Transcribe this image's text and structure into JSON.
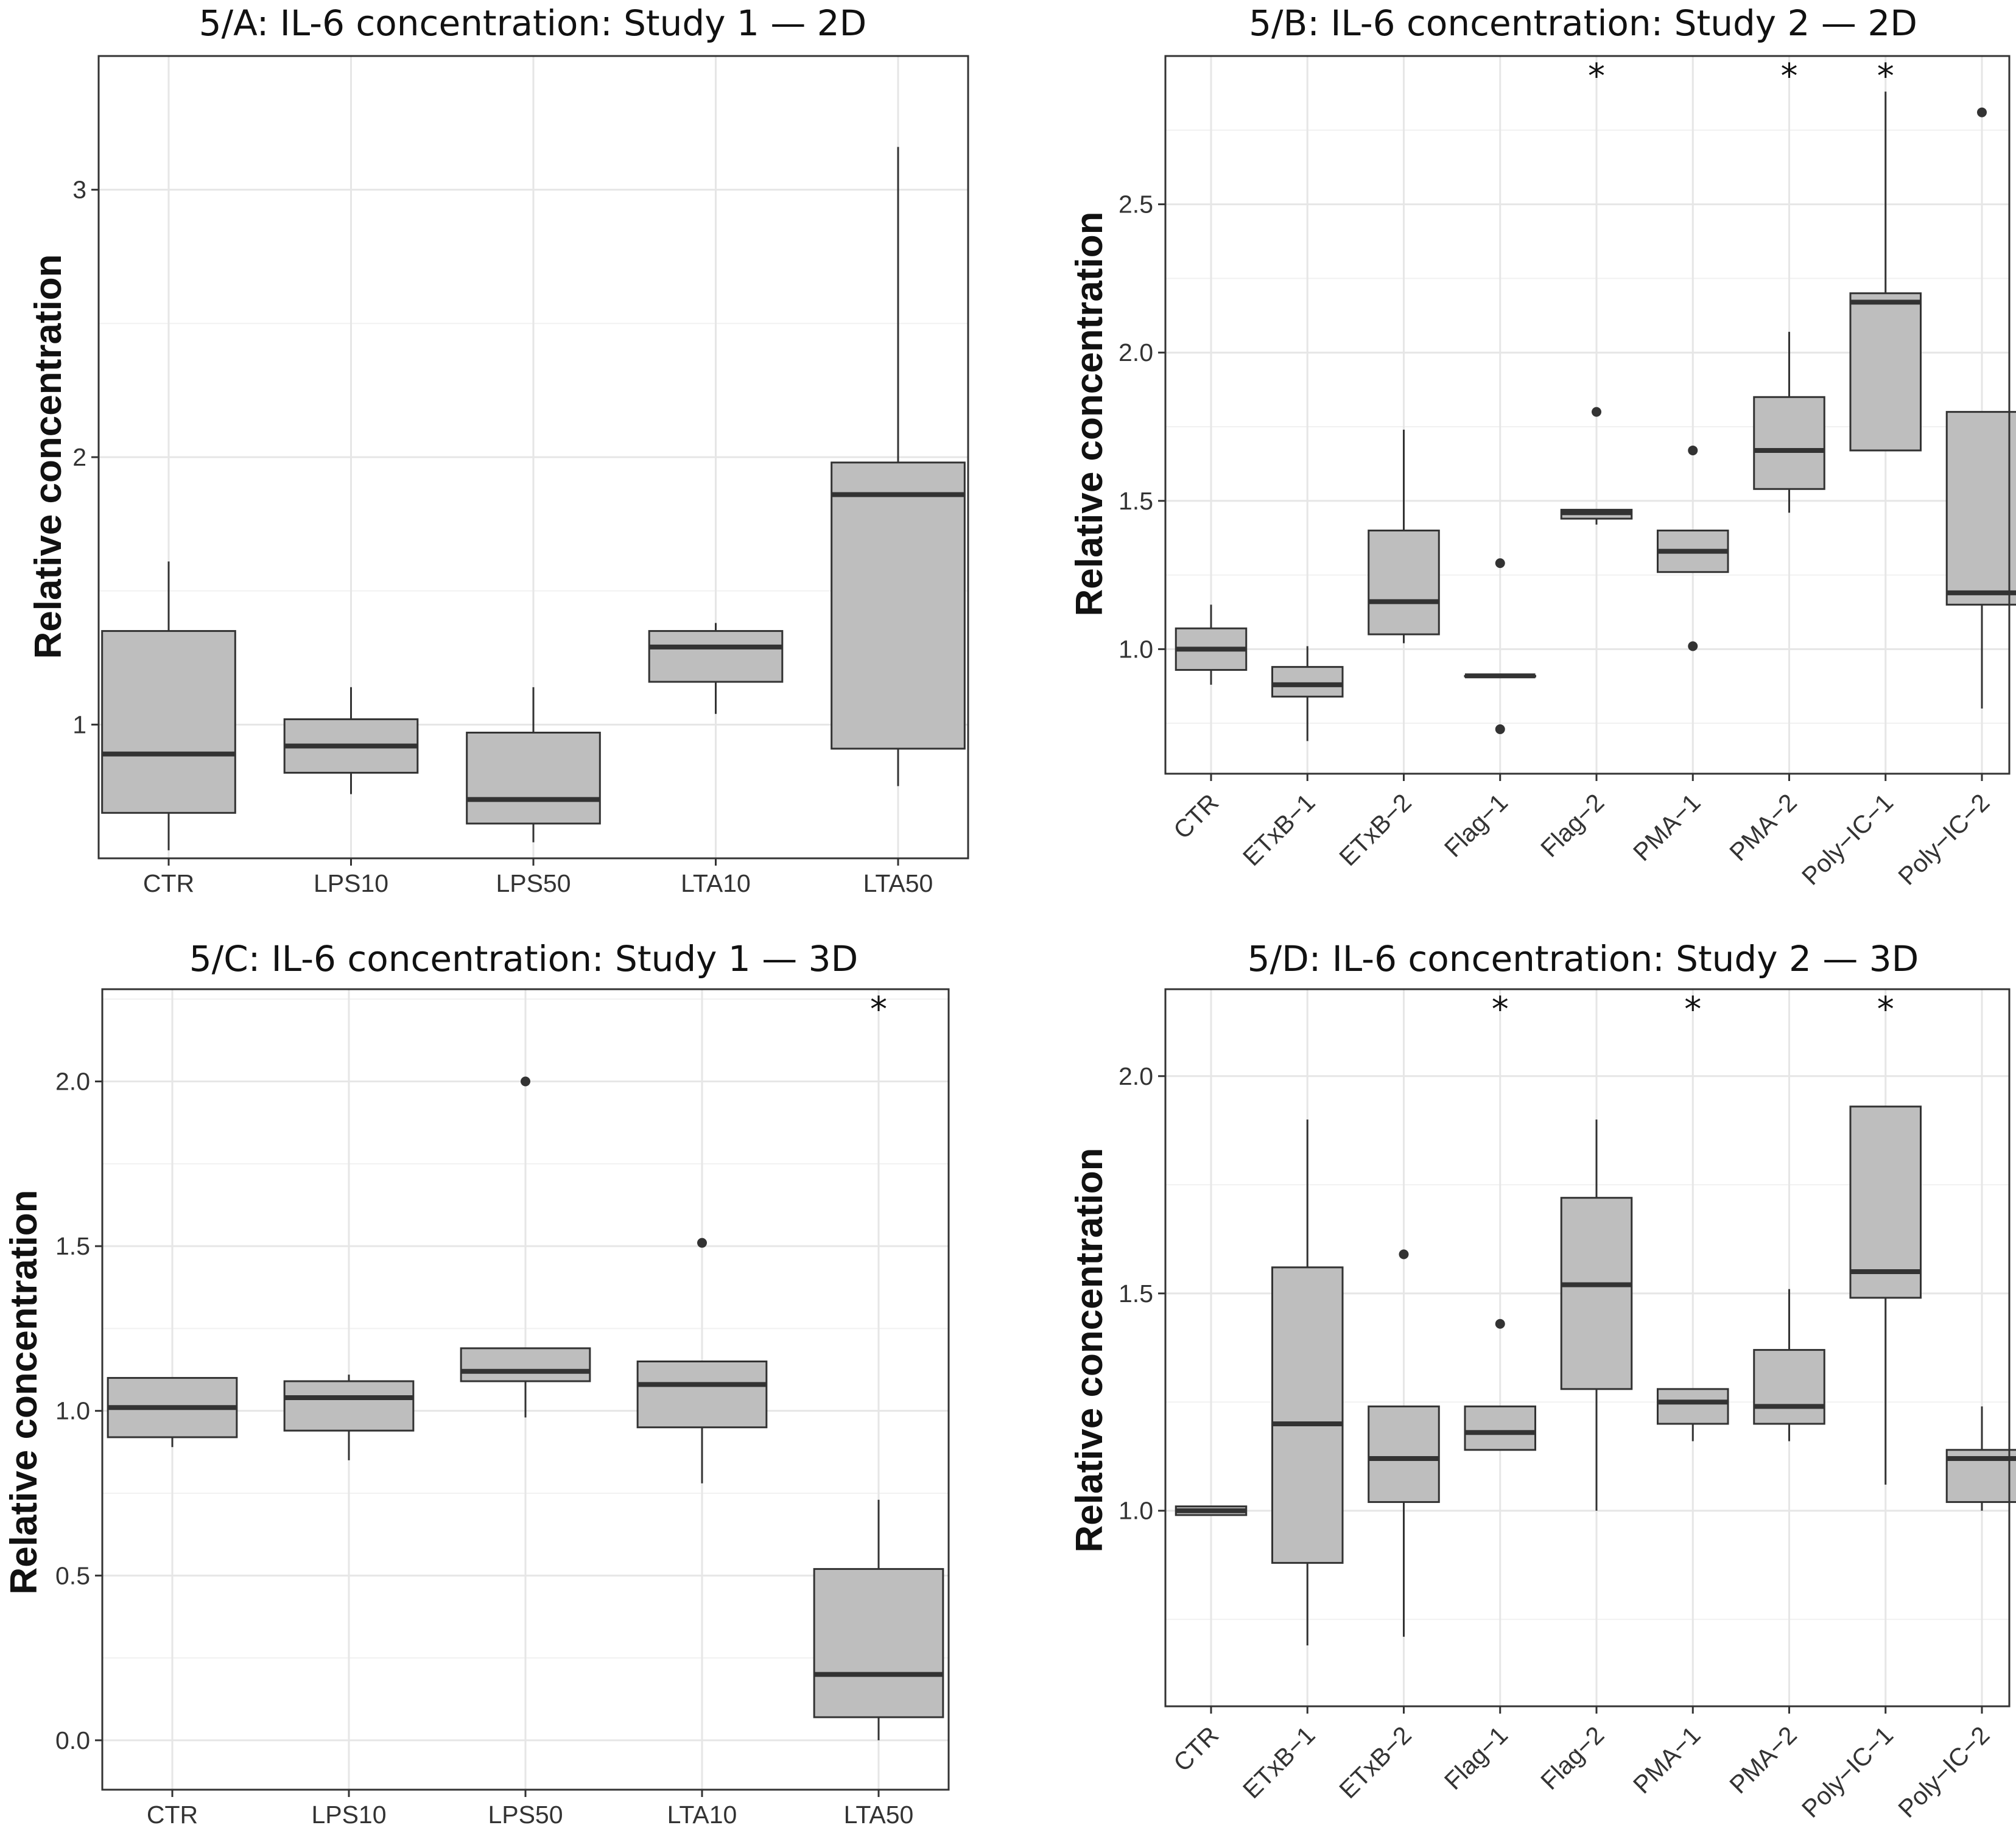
{
  "chart_data": [
    {
      "id": "A",
      "type": "boxplot",
      "title": "5/A: IL-6 concentration: Study 1 — 2D",
      "ylabel": "Relative concentration",
      "xlabel": "",
      "ylim": [
        0.5,
        3.5
      ],
      "yticks": [
        1,
        2,
        3
      ],
      "categories": [
        "CTR",
        "LPS10",
        "LPS50",
        "LTA10",
        "LTA50"
      ],
      "boxes": [
        {
          "min": 0.53,
          "q1": 0.67,
          "median": 0.89,
          "q3": 1.35,
          "max": 1.61,
          "outliers": [],
          "sig": ""
        },
        {
          "min": 0.74,
          "q1": 0.82,
          "median": 0.92,
          "q3": 1.02,
          "max": 1.14,
          "outliers": [],
          "sig": ""
        },
        {
          "min": 0.56,
          "q1": 0.63,
          "median": 0.72,
          "q3": 0.97,
          "max": 1.14,
          "outliers": [],
          "sig": ""
        },
        {
          "min": 1.04,
          "q1": 1.16,
          "median": 1.29,
          "q3": 1.35,
          "max": 1.38,
          "outliers": [],
          "sig": ""
        },
        {
          "min": 0.77,
          "q1": 0.91,
          "median": 1.86,
          "q3": 1.98,
          "max": 3.16,
          "outliers": [],
          "sig": ""
        }
      ]
    },
    {
      "id": "B",
      "type": "boxplot",
      "title": "5/B: IL-6 concentration: Study 2 — 2D",
      "ylabel": "Relative concentration",
      "xlabel": "",
      "ylim": [
        0.58,
        3.0
      ],
      "yticks": [
        1.0,
        1.5,
        2.0,
        2.5
      ],
      "categories": [
        "CTR",
        "ETxB−1",
        "ETxB−2",
        "Flag−1",
        "Flag−2",
        "PMA−1",
        "PMA−2",
        "Poly−IC−1",
        "Poly−IC−2"
      ],
      "boxes": [
        {
          "min": 0.88,
          "q1": 0.93,
          "median": 1.0,
          "q3": 1.07,
          "max": 1.15,
          "outliers": [],
          "sig": ""
        },
        {
          "min": 0.69,
          "q1": 0.84,
          "median": 0.88,
          "q3": 0.94,
          "max": 1.01,
          "outliers": [],
          "sig": ""
        },
        {
          "min": 1.02,
          "q1": 1.05,
          "median": 1.16,
          "q3": 1.4,
          "max": 1.74,
          "outliers": [],
          "sig": ""
        },
        {
          "min": 0.91,
          "q1": 0.91,
          "median": 0.91,
          "q3": 0.91,
          "max": 0.91,
          "outliers": [
            1.29,
            0.73
          ],
          "sig": ""
        },
        {
          "min": 1.42,
          "q1": 1.44,
          "median": 1.46,
          "q3": 1.47,
          "max": 1.47,
          "outliers": [
            1.8
          ],
          "sig": "*"
        },
        {
          "min": 1.26,
          "q1": 1.26,
          "median": 1.33,
          "q3": 1.4,
          "max": 1.4,
          "outliers": [
            1.67,
            1.01
          ],
          "sig": ""
        },
        {
          "min": 1.46,
          "q1": 1.54,
          "median": 1.67,
          "q3": 1.85,
          "max": 2.07,
          "outliers": [],
          "sig": "*"
        },
        {
          "min": 1.67,
          "q1": 1.67,
          "median": 2.17,
          "q3": 2.2,
          "max": 2.88,
          "outliers": [],
          "sig": "*"
        },
        {
          "min": 0.8,
          "q1": 1.15,
          "median": 1.19,
          "q3": 1.8,
          "max": 1.8,
          "outliers": [
            2.81
          ],
          "sig": ""
        }
      ]
    },
    {
      "id": "C",
      "type": "boxplot",
      "title": "5/C: IL-6 concentration: Study 1 — 3D",
      "ylabel": "Relative concentration",
      "xlabel": "",
      "ylim": [
        -0.15,
        2.28
      ],
      "yticks": [
        0.0,
        0.5,
        1.0,
        1.5,
        2.0
      ],
      "categories": [
        "CTR",
        "LPS10",
        "LPS50",
        "LTA10",
        "LTA50"
      ],
      "boxes": [
        {
          "min": 0.89,
          "q1": 0.92,
          "median": 1.01,
          "q3": 1.1,
          "max": 1.1,
          "outliers": [],
          "sig": ""
        },
        {
          "min": 0.85,
          "q1": 0.94,
          "median": 1.04,
          "q3": 1.09,
          "max": 1.11,
          "outliers": [],
          "sig": ""
        },
        {
          "min": 0.98,
          "q1": 1.09,
          "median": 1.12,
          "q3": 1.19,
          "max": 1.19,
          "outliers": [
            2.0
          ],
          "sig": ""
        },
        {
          "min": 0.78,
          "q1": 0.95,
          "median": 1.08,
          "q3": 1.15,
          "max": 1.15,
          "outliers": [
            1.51
          ],
          "sig": ""
        },
        {
          "min": 0.0,
          "q1": 0.07,
          "median": 0.2,
          "q3": 0.52,
          "max": 0.73,
          "outliers": [],
          "sig": "*"
        }
      ]
    },
    {
      "id": "D",
      "type": "boxplot",
      "title": "5/D: IL-6 concentration: Study 2 — 3D",
      "ylabel": "Relative concentration",
      "xlabel": "",
      "ylim": [
        0.55,
        2.2
      ],
      "yticks": [
        1.0,
        1.5,
        2.0
      ],
      "categories": [
        "CTR",
        "ETxB−1",
        "ETxB−2",
        "Flag−1",
        "Flag−2",
        "PMA−1",
        "PMA−2",
        "Poly−IC−1",
        "Poly−IC−2"
      ],
      "boxes": [
        {
          "min": 0.99,
          "q1": 0.99,
          "median": 1.0,
          "q3": 1.01,
          "max": 1.01,
          "outliers": [],
          "sig": ""
        },
        {
          "min": 0.69,
          "q1": 0.88,
          "median": 1.2,
          "q3": 1.56,
          "max": 1.9,
          "outliers": [],
          "sig": ""
        },
        {
          "min": 0.71,
          "q1": 1.02,
          "median": 1.12,
          "q3": 1.24,
          "max": 1.24,
          "outliers": [
            1.59
          ],
          "sig": ""
        },
        {
          "min": 1.14,
          "q1": 1.14,
          "median": 1.18,
          "q3": 1.24,
          "max": 1.24,
          "outliers": [
            1.43
          ],
          "sig": "*"
        },
        {
          "min": 1.0,
          "q1": 1.28,
          "median": 1.52,
          "q3": 1.72,
          "max": 1.9,
          "outliers": [],
          "sig": ""
        },
        {
          "min": 1.16,
          "q1": 1.2,
          "median": 1.25,
          "q3": 1.28,
          "max": 1.28,
          "outliers": [],
          "sig": "*"
        },
        {
          "min": 1.16,
          "q1": 1.2,
          "median": 1.24,
          "q3": 1.37,
          "max": 1.51,
          "outliers": [],
          "sig": ""
        },
        {
          "min": 1.06,
          "q1": 1.49,
          "median": 1.55,
          "q3": 1.93,
          "max": 1.93,
          "outliers": [],
          "sig": "*"
        },
        {
          "min": 1.0,
          "q1": 1.02,
          "median": 1.12,
          "q3": 1.14,
          "max": 1.24,
          "outliers": [],
          "sig": ""
        }
      ]
    }
  ]
}
